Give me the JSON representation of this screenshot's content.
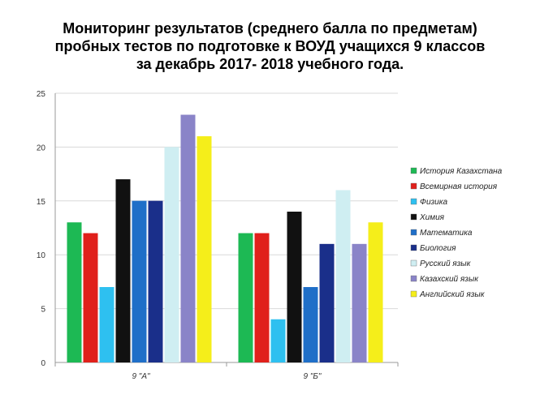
{
  "title": {
    "line1": "Мониторинг результатов (среднего балла по предметам)",
    "line2": "пробных тестов по подготовке к  ВОУД учащихся  9 классов",
    "line3": "за  декабрь 2017- 2018 учебного года."
  },
  "chart_data": {
    "type": "bar",
    "categories": [
      "9 \"А\"",
      "9 \"Б\""
    ],
    "ylim": [
      0,
      25
    ],
    "yticks": [
      0,
      5,
      10,
      15,
      20,
      25
    ],
    "grid": true,
    "legend_position": "right",
    "series": [
      {
        "name": "История Казахстана",
        "color": "#1db954",
        "values": [
          13,
          12
        ]
      },
      {
        "name": "Всемирная история",
        "color": "#e0201b",
        "values": [
          12,
          12
        ]
      },
      {
        "name": "Физика",
        "color": "#2ec0f0",
        "values": [
          7,
          4
        ]
      },
      {
        "name": "Химия",
        "color": "#111111",
        "values": [
          17,
          14
        ]
      },
      {
        "name": "Математика",
        "color": "#1f6fc8",
        "values": [
          15,
          7
        ]
      },
      {
        "name": "Биология",
        "color": "#1a2f8a",
        "values": [
          15,
          11
        ]
      },
      {
        "name": "Русский язык",
        "color": "#cfeef2",
        "values": [
          20,
          16
        ]
      },
      {
        "name": "Казахский язык",
        "color": "#8a84c8",
        "values": [
          23,
          11
        ]
      },
      {
        "name": "Английский язык",
        "color": "#f5ee1a",
        "values": [
          21,
          13
        ]
      }
    ]
  }
}
